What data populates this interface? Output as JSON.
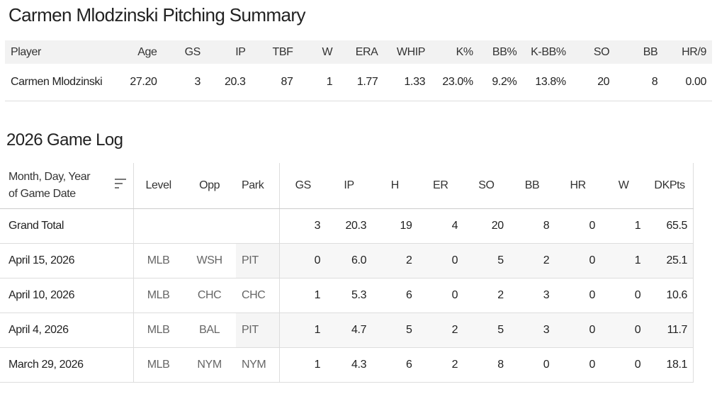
{
  "page_title": "Carmen Mlodzinski Pitching Summary",
  "summary": {
    "headers": [
      "Player",
      "Age",
      "GS",
      "IP",
      "TBF",
      "W",
      "ERA",
      "WHIP",
      "K%",
      "BB%",
      "K-BB%",
      "SO",
      "BB",
      "HR/9"
    ],
    "row": [
      "Carmen Mlodzinski",
      "27.20",
      "3",
      "20.3",
      "87",
      "1",
      "1.77",
      "1.33",
      "23.0%",
      "9.2%",
      "13.8%",
      "20",
      "8",
      "0.00"
    ]
  },
  "game_log": {
    "title": "2026 Game Log",
    "headers": {
      "date": "Month, Day, Year of Game Date",
      "level": "Level",
      "opp": "Opp",
      "park": "Park",
      "stats": [
        "GS",
        "IP",
        "H",
        "ER",
        "SO",
        "BB",
        "HR",
        "W",
        "DKPts"
      ]
    },
    "grand_total": {
      "label": "Grand Total",
      "stats": [
        "3",
        "20.3",
        "19",
        "4",
        "20",
        "8",
        "0",
        "1",
        "65.5"
      ]
    },
    "rows": [
      {
        "date": "April 15, 2026",
        "level": "MLB",
        "opp": "WSH",
        "park": "PIT",
        "stats": [
          "0",
          "6.0",
          "2",
          "0",
          "5",
          "2",
          "0",
          "1",
          "25.1"
        ]
      },
      {
        "date": "April 10, 2026",
        "level": "MLB",
        "opp": "CHC",
        "park": "CHC",
        "stats": [
          "1",
          "5.3",
          "6",
          "0",
          "2",
          "3",
          "0",
          "0",
          "10.6"
        ]
      },
      {
        "date": "April 4, 2026",
        "level": "MLB",
        "opp": "BAL",
        "park": "PIT",
        "stats": [
          "1",
          "4.7",
          "5",
          "2",
          "5",
          "3",
          "0",
          "0",
          "11.7"
        ]
      },
      {
        "date": "March 29, 2026",
        "level": "MLB",
        "opp": "NYM",
        "park": "NYM",
        "stats": [
          "1",
          "4.3",
          "6",
          "2",
          "8",
          "0",
          "0",
          "0",
          "18.1"
        ]
      }
    ]
  },
  "icons": {
    "sort": "sort-descending-icon"
  }
}
